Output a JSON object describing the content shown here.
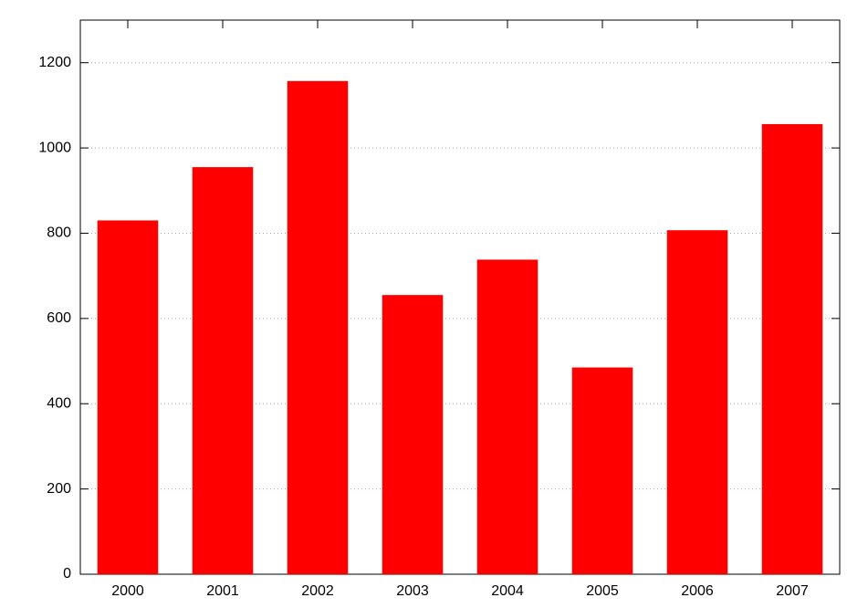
{
  "chart_data": {
    "type": "bar",
    "categories": [
      "2000",
      "2001",
      "2002",
      "2003",
      "2004",
      "2005",
      "2006",
      "2007"
    ],
    "values": [
      830,
      955,
      1157,
      655,
      738,
      485,
      807,
      1056
    ],
    "color": "#ff0000",
    "ylim": [
      0,
      1300
    ],
    "yticks": [
      0,
      200,
      400,
      600,
      800,
      1000,
      1200
    ],
    "grid": true
  }
}
